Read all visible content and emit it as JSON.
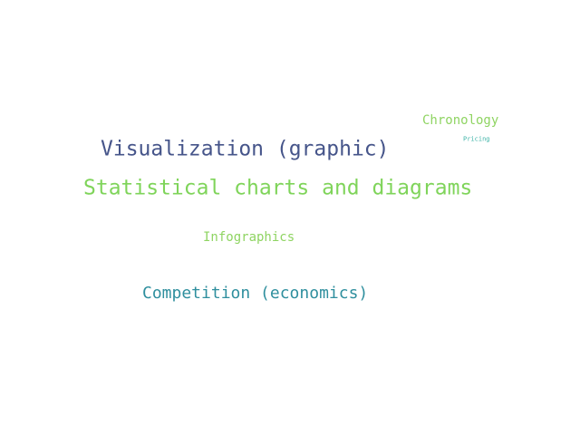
{
  "words": [
    {
      "id": "chronology",
      "text": "Chronology",
      "color": "#8fd462"
    },
    {
      "id": "pricing",
      "text": "Pricing",
      "color": "#3fb4a8"
    },
    {
      "id": "visualization",
      "text": "Visualization (graphic)",
      "color": "#46558a"
    },
    {
      "id": "statistical",
      "text": "Statistical charts and diagrams",
      "color": "#7fd45a"
    },
    {
      "id": "infographics",
      "text": "Infographics",
      "color": "#8fd462"
    },
    {
      "id": "competition",
      "text": "Competition (economics)",
      "color": "#2f8f9e"
    }
  ]
}
